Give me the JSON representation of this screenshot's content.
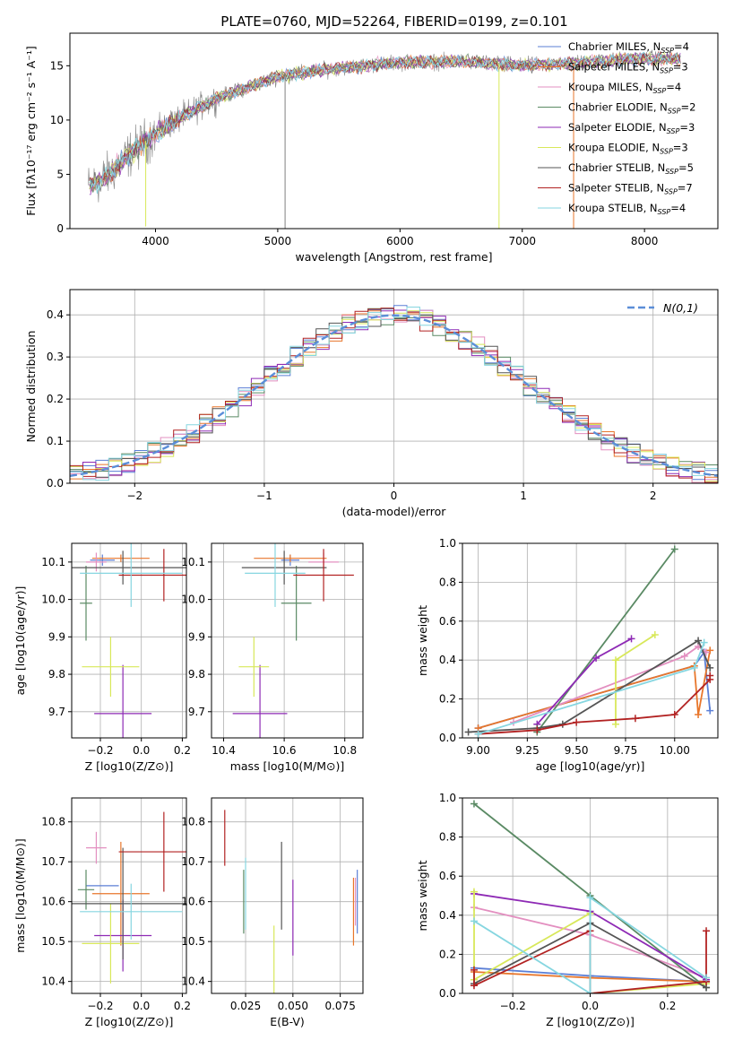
{
  "figure_title": "PLATE=0760, MJD=52264, FIBERID=0199, z=0.101",
  "colors": {
    "Chabrier MILES": "#5b7fd6",
    "Salpeter MILES": "#e8762b",
    "Kroupa MILES": "#e38fc0",
    "Chabrier ELODIE": "#5a8a64",
    "Salpeter ELODIE": "#8e2ab5",
    "Kroupa ELODIE": "#d8e85a",
    "Chabrier STELIB": "#555555",
    "Salpeter STELIB": "#b22222",
    "Kroupa STELIB": "#86d6e0",
    "data_gray": "#808080",
    "gaussian": "#5b8ed8",
    "grid": "#b0b0b0"
  },
  "chart_data": [
    {
      "type": "line",
      "title": "PLATE=0760, MJD=52264, FIBERID=0199, z=0.101",
      "xlabel": "wavelength [Angstrom, rest frame]",
      "ylabel": "Flux [fλ10⁻¹⁷ erg cm⁻² s⁻¹ A⁻¹]",
      "xlim": [
        3300,
        8600
      ],
      "ylim": [
        0,
        18
      ],
      "xticks": [
        4000,
        5000,
        6000,
        7000,
        8000
      ],
      "yticks": [
        0,
        5,
        10,
        15
      ],
      "grid": false,
      "legend": "upper right",
      "legend_labels": [
        "Chabrier MILES, N_SSP=4",
        "Salpeter MILES, N_SSP=3",
        "Kroupa MILES, N_SSP=4",
        "Chabrier ELODIE, N_SSP=2",
        "Salpeter ELODIE, N_SSP=3",
        "Kroupa ELODIE, N_SSP=3",
        "Chabrier STELIB, N_SSP=5",
        "Salpeter STELIB, N_SSP=7",
        "Kroupa STELIB, N_SSP=4"
      ],
      "continuum": {
        "x": [
          3450,
          3600,
          3800,
          4000,
          4200,
          4500,
          5000,
          5500,
          6000,
          6500,
          7000,
          7500,
          8000,
          8300
        ],
        "y": [
          3.8,
          4.8,
          7.0,
          8.8,
          10.2,
          12.0,
          14.0,
          14.8,
          15.3,
          15.4,
          15.0,
          15.3,
          15.7,
          15.6
        ]
      },
      "spikes": [
        {
          "x": 3920,
          "y": 0.2,
          "series": "Kroupa ELODIE"
        },
        {
          "x": 5060,
          "y": 0.0,
          "series": "data"
        },
        {
          "x": 6810,
          "y": 0.0,
          "series": "Kroupa ELODIE"
        },
        {
          "x": 7420,
          "y": 0.0,
          "series": "Salpeter MILES"
        }
      ]
    },
    {
      "type": "histogram",
      "xlabel": "(data-model)/error",
      "ylabel": "Normed distribution",
      "xlim": [
        -2.5,
        2.5
      ],
      "ylim": [
        0,
        0.46
      ],
      "xticks": [
        -2,
        -1,
        0,
        1,
        2
      ],
      "yticks": [
        0.0,
        0.1,
        0.2,
        0.3,
        0.4
      ],
      "grid": true,
      "legend": "upper right",
      "legend_label": "N(0,1)",
      "bin_width": 0.1,
      "bin_start": -2.5
    },
    {
      "type": "scatter",
      "xlabel": "Z [log10(Z/Z⊙)]",
      "ylabel": "age  [log10(age/yr)]",
      "xlim": [
        -0.34,
        0.22
      ],
      "ylim": [
        9.63,
        10.15
      ],
      "xticks": [
        -0.2,
        0.0,
        0.2
      ],
      "yticks": [
        9.7,
        9.8,
        9.9,
        10.0,
        10.1
      ],
      "grid": true,
      "points": [
        {
          "series": "Chabrier MILES",
          "x": -0.19,
          "xerr": 0.06,
          "y": 10.105,
          "yerr": 0.015
        },
        {
          "series": "Salpeter MILES",
          "x": -0.1,
          "xerr": 0.14,
          "y": 10.11,
          "yerr": 0.01
        },
        {
          "series": "Kroupa MILES",
          "x": -0.22,
          "xerr": 0.05,
          "y": 10.1,
          "yerr": 0.025
        },
        {
          "series": "Chabrier ELODIE",
          "x": -0.27,
          "xerr": 0.03,
          "y": 9.99,
          "yerr": 0.1
        },
        {
          "series": "Salpeter ELODIE",
          "x": -0.09,
          "xerr": 0.14,
          "y": 9.695,
          "yerr": 0.13
        },
        {
          "series": "Kroupa ELODIE",
          "x": -0.15,
          "xerr": 0.14,
          "y": 9.82,
          "yerr": 0.08
        },
        {
          "series": "Chabrier STELIB",
          "x": -0.09,
          "xerr": 0.31,
          "y": 10.085,
          "yerr": 0.045
        },
        {
          "series": "Salpeter STELIB",
          "x": 0.11,
          "xerr": 0.22,
          "y": 10.065,
          "yerr": 0.07
        },
        {
          "series": "Kroupa STELIB",
          "x": -0.05,
          "xerr": 0.25,
          "y": 10.07,
          "yerr": 0.09
        }
      ]
    },
    {
      "type": "scatter",
      "xlabel": "mass [log10(M/M⊙)]",
      "xlim": [
        10.36,
        10.86
      ],
      "ylim": [
        9.63,
        10.15
      ],
      "xticks": [
        10.4,
        10.6,
        10.8
      ],
      "yticks": [
        9.7,
        9.8,
        9.9,
        10.0,
        10.1
      ],
      "grid": true,
      "points": [
        {
          "series": "Chabrier MILES",
          "x": 10.62,
          "xerr": 0.03,
          "y": 10.105,
          "yerr": 0.015
        },
        {
          "series": "Salpeter MILES",
          "x": 10.62,
          "xerr": 0.12,
          "y": 10.11,
          "yerr": 0.01
        },
        {
          "series": "Kroupa MILES",
          "x": 10.73,
          "xerr": 0.05,
          "y": 10.1,
          "yerr": 0.025
        },
        {
          "series": "Chabrier ELODIE",
          "x": 10.64,
          "xerr": 0.05,
          "y": 9.99,
          "yerr": 0.1
        },
        {
          "series": "Salpeter ELODIE",
          "x": 10.52,
          "xerr": 0.09,
          "y": 9.695,
          "yerr": 0.13
        },
        {
          "series": "Kroupa ELODIE",
          "x": 10.5,
          "xerr": 0.05,
          "y": 9.82,
          "yerr": 0.08
        },
        {
          "series": "Chabrier STELIB",
          "x": 10.6,
          "xerr": 0.14,
          "y": 10.085,
          "yerr": 0.045
        },
        {
          "series": "Salpeter STELIB",
          "x": 10.73,
          "xerr": 0.1,
          "y": 10.065,
          "yerr": 0.07
        },
        {
          "series": "Kroupa STELIB",
          "x": 10.57,
          "xerr": 0.1,
          "y": 10.07,
          "yerr": 0.09
        }
      ]
    },
    {
      "type": "line",
      "xlabel": "age  [log10(age/yr)]",
      "ylabel": "mass weight",
      "xlim": [
        8.92,
        10.22
      ],
      "ylim": [
        0,
        1
      ],
      "xticks": [
        9.0,
        9.25,
        9.5,
        9.75,
        10.0
      ],
      "yticks": [
        0.0,
        0.2,
        0.4,
        0.6,
        0.8,
        1.0
      ],
      "grid": true,
      "series": [
        {
          "name": "Chabrier MILES",
          "x": [
            9.0,
            10.1,
            10.15,
            10.18
          ],
          "y": [
            0.05,
            0.37,
            0.44,
            0.14
          ]
        },
        {
          "name": "Salpeter MILES",
          "x": [
            9.0,
            10.1,
            10.12,
            10.18
          ],
          "y": [
            0.05,
            0.37,
            0.12,
            0.45
          ]
        },
        {
          "name": "Kroupa MILES",
          "x": [
            9.18,
            10.05,
            10.12,
            10.16
          ],
          "y": [
            0.08,
            0.42,
            0.47,
            0.44
          ]
        },
        {
          "name": "Chabrier ELODIE",
          "x": [
            9.3,
            10.0
          ],
          "y": [
            0.03,
            0.97
          ]
        },
        {
          "name": "Salpeter ELODIE",
          "x": [
            9.3,
            9.6,
            9.78
          ],
          "y": [
            0.07,
            0.41,
            0.51
          ]
        },
        {
          "name": "Kroupa ELODIE",
          "x": [
            9.7,
            9.7,
            9.9
          ],
          "y": [
            0.07,
            0.4,
            0.53
          ]
        },
        {
          "name": "Chabrier STELIB",
          "x": [
            8.95,
            9.3,
            9.43,
            10.12,
            10.18
          ],
          "y": [
            0.03,
            0.05,
            0.07,
            0.5,
            0.36
          ]
        },
        {
          "name": "Salpeter STELIB",
          "x": [
            9.0,
            9.3,
            9.5,
            9.8,
            10.0,
            10.18,
            10.18
          ],
          "y": [
            0.02,
            0.04,
            0.08,
            0.1,
            0.12,
            0.3,
            0.32
          ]
        },
        {
          "name": "Kroupa STELIB",
          "x": [
            9.0,
            10.1,
            10.15
          ],
          "y": [
            0.02,
            0.36,
            0.49
          ]
        }
      ]
    },
    {
      "type": "scatter",
      "xlabel": "Z [log10(Z/Z⊙)]",
      "ylabel": "mass [log10(M/M⊙)]",
      "xlim": [
        -0.34,
        0.22
      ],
      "ylim": [
        10.37,
        10.86
      ],
      "xticks": [
        -0.2,
        0.0,
        0.2
      ],
      "yticks": [
        10.4,
        10.5,
        10.6,
        10.7,
        10.8
      ],
      "grid": true,
      "points": [
        {
          "series": "Chabrier MILES",
          "x": -0.19,
          "xerr": 0.08,
          "y": 10.64,
          "yerr": 0.0
        },
        {
          "series": "Salpeter MILES",
          "x": -0.1,
          "xerr": 0.14,
          "y": 10.62,
          "yerr": 0.13
        },
        {
          "series": "Kroupa MILES",
          "x": -0.22,
          "xerr": 0.05,
          "y": 10.735,
          "yerr": 0.04
        },
        {
          "series": "Chabrier ELODIE",
          "x": -0.27,
          "xerr": 0.04,
          "y": 10.63,
          "yerr": 0.05
        },
        {
          "series": "Salpeter ELODIE",
          "x": -0.09,
          "xerr": 0.14,
          "y": 10.515,
          "yerr": 0.09
        },
        {
          "series": "Kroupa ELODIE",
          "x": -0.15,
          "xerr": 0.14,
          "y": 10.495,
          "yerr": 0.1
        },
        {
          "series": "Chabrier STELIB",
          "x": -0.09,
          "xerr": 0.31,
          "y": 10.595,
          "yerr": 0.14
        },
        {
          "series": "Salpeter STELIB",
          "x": 0.11,
          "xerr": 0.22,
          "y": 10.725,
          "yerr": 0.1
        },
        {
          "series": "Kroupa STELIB",
          "x": -0.05,
          "xerr": 0.25,
          "y": 10.575,
          "yerr": 0.07
        }
      ]
    },
    {
      "type": "scatter",
      "xlabel": "E(B-V)",
      "xlim": [
        0.007,
        0.087
      ],
      "ylim": [
        10.37,
        10.86
      ],
      "xticks": [
        0.025,
        0.05,
        0.075
      ],
      "yticks": [
        10.4,
        10.5,
        10.6,
        10.7,
        10.8
      ],
      "grid": true,
      "points": [
        {
          "series": "Chabrier MILES",
          "x": 0.084,
          "y": 10.6,
          "yerr": 0.08
        },
        {
          "series": "Salpeter MILES",
          "x": 0.082,
          "y": 10.575,
          "yerr": 0.085
        },
        {
          "series": "Kroupa MILES",
          "x": 0.083,
          "y": 10.6,
          "yerr": 0.06
        },
        {
          "series": "Chabrier ELODIE",
          "x": 0.024,
          "y": 10.6,
          "yerr": 0.08
        },
        {
          "series": "Salpeter ELODIE",
          "x": 0.05,
          "y": 10.56,
          "yerr": 0.095
        },
        {
          "series": "Kroupa ELODIE",
          "x": 0.04,
          "y": 10.43,
          "yerr": 0.11
        },
        {
          "series": "Chabrier STELIB",
          "x": 0.044,
          "y": 10.64,
          "yerr": 0.11
        },
        {
          "series": "Salpeter STELIB",
          "x": 0.014,
          "y": 10.76,
          "yerr": 0.07
        },
        {
          "series": "Kroupa STELIB",
          "x": 0.025,
          "y": 10.62,
          "yerr": 0.09
        }
      ]
    },
    {
      "type": "line",
      "xlabel": "Z [log10(Z/Z⊙)]",
      "ylabel": "mass weight",
      "xlim": [
        -0.33,
        0.33
      ],
      "ylim": [
        0,
        1
      ],
      "xticks": [
        -0.2,
        0.0,
        0.2
      ],
      "yticks": [
        0.0,
        0.2,
        0.4,
        0.6,
        0.8,
        1.0
      ],
      "grid": true,
      "series": [
        {
          "name": "Chabrier MILES",
          "x": [
            -0.3,
            0.0,
            0.3
          ],
          "y": [
            0.13,
            0.09,
            0.06
          ]
        },
        {
          "name": "Salpeter MILES",
          "x": [
            -0.3,
            0.0,
            0.3
          ],
          "y": [
            0.11,
            0.08,
            0.06
          ]
        },
        {
          "name": "Kroupa MILES",
          "x": [
            -0.3,
            0.0,
            0.3
          ],
          "y": [
            0.44,
            0.3,
            0.08
          ]
        },
        {
          "name": "Chabrier ELODIE",
          "x": [
            -0.3,
            0.0,
            0.3
          ],
          "y": [
            0.97,
            0.5,
            0.03
          ]
        },
        {
          "name": "Salpeter ELODIE",
          "x": [
            -0.3,
            0.0,
            0.3
          ],
          "y": [
            0.51,
            0.42,
            0.07
          ]
        },
        {
          "name": "Kroupa ELODIE",
          "x": [
            -0.3,
            -0.3,
            0.0,
            0.0,
            0.3
          ],
          "y": [
            0.52,
            0.07,
            0.41,
            0.0,
            0.05
          ]
        },
        {
          "name": "Chabrier STELIB",
          "x": [
            -0.3,
            0.0,
            0.3
          ],
          "y": [
            0.05,
            0.36,
            0.03
          ]
        },
        {
          "name": "Salpeter STELIB",
          "x": [
            -0.3,
            -0.3,
            0.0,
            0.0,
            0.3,
            0.3
          ],
          "y": [
            0.12,
            0.04,
            0.32,
            0.0,
            0.06,
            0.32
          ]
        },
        {
          "name": "Kroupa STELIB",
          "x": [
            -0.3,
            0.0,
            0.0,
            0.3
          ],
          "y": [
            0.37,
            0.0,
            0.49,
            0.08
          ]
        }
      ]
    }
  ]
}
